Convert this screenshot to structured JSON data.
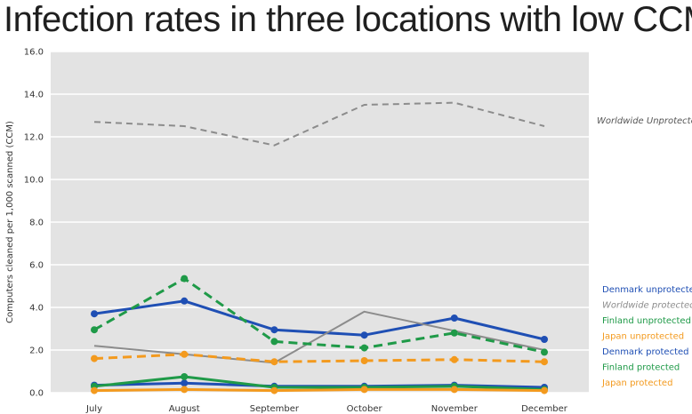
{
  "chart_data": {
    "type": "line",
    "title": "Infection rates in three locations with low CCM",
    "ylabel": "Computers cleaned per 1,000 scanned (CCM)",
    "xlabel": "",
    "ylim": [
      0,
      16
    ],
    "yticks": [
      "0.0",
      "2.0",
      "4.0",
      "6.0",
      "8.0",
      "10.0",
      "12.0",
      "14.0",
      "16.0"
    ],
    "categories": [
      "July",
      "August",
      "September",
      "October",
      "November",
      "December"
    ],
    "grid": true,
    "plot_background": "#e3e3e3",
    "legend_position": "right",
    "series": [
      {
        "name": "Worldwide Unprotected",
        "values": [
          12.7,
          12.5,
          11.6,
          13.5,
          13.6,
          12.5
        ],
        "color": "#8c8c8c",
        "dash": true,
        "markers": false,
        "italic": true
      },
      {
        "name": "Denmark unprotected",
        "values": [
          3.7,
          4.3,
          2.95,
          2.7,
          3.5,
          2.5
        ],
        "color": "#1f4fb4",
        "dash": false,
        "markers": true,
        "italic": false
      },
      {
        "name": "Worldwide protected",
        "values": [
          2.2,
          1.8,
          1.4,
          3.8,
          2.9,
          2.0
        ],
        "color": "#8c8c8c",
        "dash": false,
        "markers": false,
        "italic": true
      },
      {
        "name": "Finland unprotected",
        "values": [
          2.95,
          5.35,
          2.4,
          2.1,
          2.8,
          1.9
        ],
        "color": "#1f9a48",
        "dash": true,
        "markers": true,
        "italic": false
      },
      {
        "name": "Japan unprotected",
        "values": [
          1.6,
          1.8,
          1.45,
          1.5,
          1.55,
          1.45
        ],
        "color": "#f39a1e",
        "dash": true,
        "markers": true,
        "italic": false
      },
      {
        "name": "Denmark protected",
        "values": [
          0.35,
          0.45,
          0.3,
          0.3,
          0.35,
          0.25
        ],
        "color": "#1f4fb4",
        "dash": false,
        "markers": true,
        "italic": false
      },
      {
        "name": "Finland protected",
        "values": [
          0.3,
          0.75,
          0.25,
          0.25,
          0.3,
          0.15
        ],
        "color": "#1f9a48",
        "dash": false,
        "markers": true,
        "italic": false
      },
      {
        "name": "Japan protected",
        "values": [
          0.1,
          0.15,
          0.1,
          0.15,
          0.15,
          0.1
        ],
        "color": "#f39a1e",
        "dash": false,
        "markers": true,
        "italic": false
      }
    ],
    "legend_order": [
      "Denmark unprotected",
      "Worldwide protected",
      "Finland unprotected",
      "Japan unprotected",
      "Denmark protected",
      "Finland protected",
      "Japan protected"
    ],
    "annotation": "Worldwide Unprotected"
  }
}
